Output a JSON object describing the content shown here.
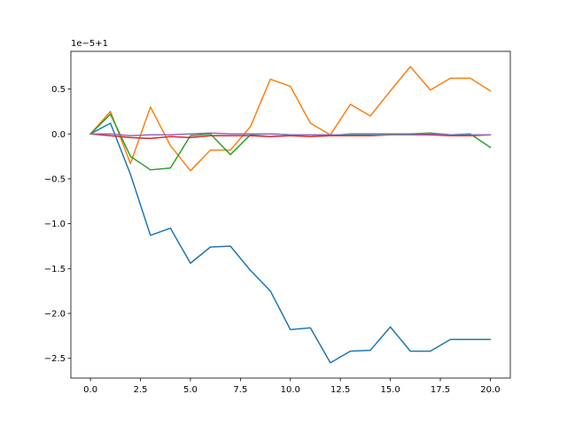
{
  "chart_data": {
    "type": "line",
    "title": "",
    "xlabel": "",
    "ylabel": "",
    "offset_label": "1e−5+1",
    "xlim": [
      -0.98,
      21.0
    ],
    "ylim": [
      -2.72,
      0.92
    ],
    "grid": false,
    "x_ticks": [
      0.0,
      2.5,
      5.0,
      7.5,
      10.0,
      12.5,
      15.0,
      17.5,
      20.0
    ],
    "x_tick_labels": [
      "0.0",
      "2.5",
      "5.0",
      "7.5",
      "10.0",
      "12.5",
      "15.0",
      "17.5",
      "20.0"
    ],
    "y_ticks": [
      -2.5,
      -2.0,
      -1.5,
      -1.0,
      -0.5,
      0.0,
      0.5
    ],
    "y_tick_labels": [
      "−2.5",
      "−2.0",
      "−1.5",
      "−1.0",
      "−0.5",
      "0.0",
      "0.5"
    ],
    "x": [
      0,
      1,
      2,
      3,
      4,
      5,
      6,
      7,
      8,
      9,
      10,
      11,
      12,
      13,
      14,
      15,
      16,
      17,
      18,
      19,
      20
    ],
    "series": [
      {
        "color": "#1f77b4",
        "values": [
          0.0,
          0.12,
          -0.45,
          -1.13,
          -1.05,
          -1.44,
          -1.26,
          -1.25,
          -1.52,
          -1.75,
          -2.18,
          -2.16,
          -2.55,
          -2.42,
          -2.41,
          -2.15,
          -2.42,
          -2.42,
          -2.29,
          -2.29,
          -2.29
        ]
      },
      {
        "color": "#ff7f0e",
        "values": [
          0.0,
          0.25,
          -0.33,
          0.3,
          -0.13,
          -0.41,
          -0.18,
          -0.18,
          0.08,
          0.61,
          0.53,
          0.12,
          -0.01,
          0.33,
          0.2,
          0.48,
          0.75,
          0.49,
          0.62,
          0.62,
          0.48
        ]
      },
      {
        "color": "#2ca02c",
        "values": [
          0.0,
          0.22,
          -0.25,
          -0.4,
          -0.38,
          -0.02,
          0.0,
          -0.23,
          -0.01,
          0.0,
          -0.01,
          -0.01,
          -0.02,
          0.0,
          0.0,
          0.0,
          0.0,
          0.01,
          -0.01,
          0.0,
          -0.15
        ]
      },
      {
        "color": "#d62728",
        "values": [
          0.0,
          -0.02,
          -0.04,
          -0.05,
          -0.03,
          -0.04,
          -0.02,
          -0.02,
          -0.02,
          -0.03,
          -0.02,
          -0.03,
          -0.02,
          -0.02,
          -0.02,
          -0.01,
          -0.01,
          -0.01,
          -0.02,
          -0.02,
          -0.01
        ]
      },
      {
        "color": "#9467bd",
        "values": [
          0.0,
          0.0,
          -0.02,
          -0.01,
          -0.01,
          0.0,
          0.01,
          0.0,
          0.0,
          0.0,
          -0.01,
          -0.01,
          -0.01,
          -0.01,
          -0.01,
          -0.01,
          -0.01,
          0.0,
          -0.01,
          -0.01,
          -0.01
        ]
      }
    ]
  }
}
